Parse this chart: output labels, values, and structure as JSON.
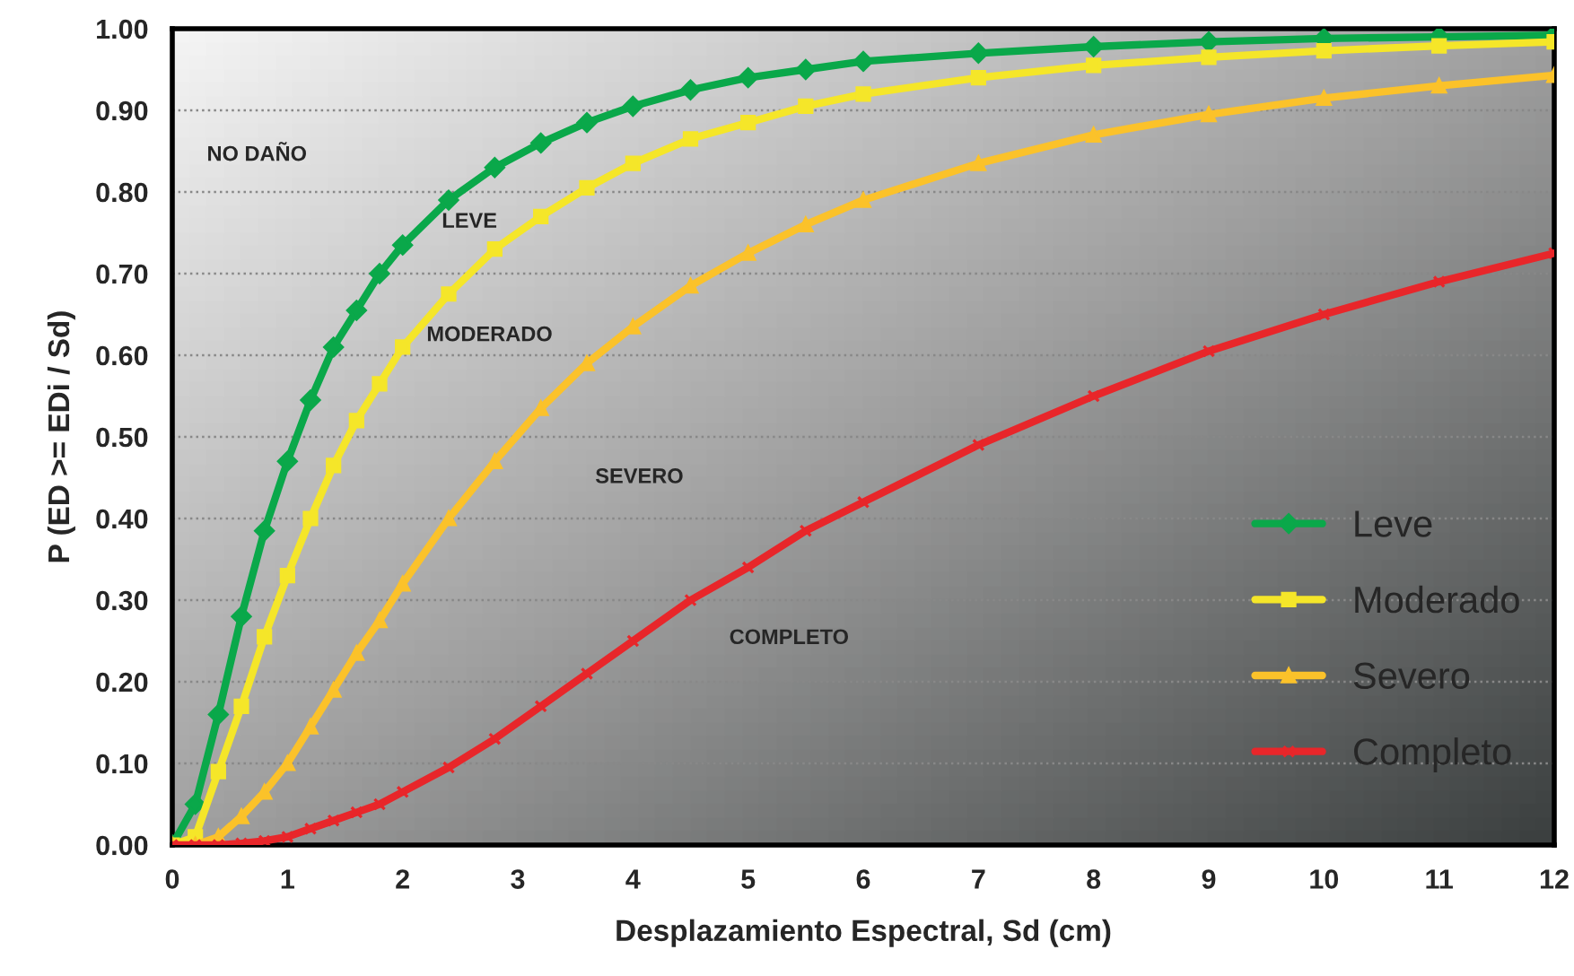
{
  "chart_data": {
    "type": "line",
    "xlabel": "Desplazamiento Espectral, Sd (cm)",
    "ylabel": "P (ED >= EDi / Sd)",
    "x": [
      0,
      0.2,
      0.4,
      0.6,
      0.8,
      1.0,
      1.2,
      1.4,
      1.6,
      1.8,
      2.0,
      2.4,
      2.8,
      3.2,
      3.6,
      4,
      4.5,
      5,
      5.5,
      6,
      7,
      8,
      9,
      10,
      11,
      12
    ],
    "series": [
      {
        "name": "Leve",
        "color": "#0aa84a",
        "marker": "diamond",
        "values": [
          0,
          0.05,
          0.16,
          0.28,
          0.385,
          0.47,
          0.545,
          0.61,
          0.655,
          0.7,
          0.735,
          0.79,
          0.83,
          0.86,
          0.885,
          0.905,
          0.925,
          0.94,
          0.95,
          0.96,
          0.97,
          0.978,
          0.984,
          0.988,
          0.99,
          0.992
        ]
      },
      {
        "name": "Moderado",
        "color": "#f5e629",
        "marker": "square",
        "values": [
          0,
          0.01,
          0.09,
          0.17,
          0.255,
          0.33,
          0.4,
          0.465,
          0.52,
          0.565,
          0.61,
          0.675,
          0.73,
          0.77,
          0.805,
          0.835,
          0.865,
          0.885,
          0.905,
          0.92,
          0.94,
          0.955,
          0.965,
          0.973,
          0.979,
          0.984
        ]
      },
      {
        "name": "Severo",
        "color": "#fbc22a",
        "marker": "triangle",
        "values": [
          0,
          0,
          0.01,
          0.035,
          0.065,
          0.1,
          0.145,
          0.19,
          0.235,
          0.275,
          0.32,
          0.4,
          0.47,
          0.535,
          0.59,
          0.635,
          0.685,
          0.725,
          0.76,
          0.79,
          0.835,
          0.87,
          0.895,
          0.915,
          0.93,
          0.943
        ]
      },
      {
        "name": "Completo",
        "color": "#e8262a",
        "marker": "cross",
        "values": [
          0,
          0,
          0,
          0.002,
          0.005,
          0.01,
          0.02,
          0.03,
          0.04,
          0.05,
          0.065,
          0.095,
          0.13,
          0.17,
          0.21,
          0.25,
          0.3,
          0.34,
          0.385,
          0.42,
          0.49,
          0.55,
          0.605,
          0.65,
          0.69,
          0.725
        ]
      }
    ],
    "xlim": [
      0,
      12
    ],
    "xticks": [
      0,
      1,
      2,
      3,
      4,
      5,
      6,
      7,
      8,
      9,
      10,
      11,
      12
    ],
    "ylim": [
      0,
      1
    ],
    "yticks": [
      {
        "value": 0,
        "label": "0.00"
      },
      {
        "value": 0.1,
        "label": "0.10"
      },
      {
        "value": 0.2,
        "label": "0.20"
      },
      {
        "value": 0.3,
        "label": "0.30"
      },
      {
        "value": 0.4,
        "label": "0.40"
      },
      {
        "value": 0.5,
        "label": "0.50"
      },
      {
        "value": 0.6,
        "label": "0.60"
      },
      {
        "value": 0.7,
        "label": "0.70"
      },
      {
        "value": 0.8,
        "label": "0.80"
      },
      {
        "value": 0.9,
        "label": "0.90"
      },
      {
        "value": 1,
        "label": "1.00"
      }
    ],
    "grid": "y",
    "legend": "right",
    "line_style": "solid",
    "annotations": [
      "NO DAÑO",
      "LEVE",
      "MODERADO",
      "SEVERO",
      "COMPLETO"
    ]
  }
}
